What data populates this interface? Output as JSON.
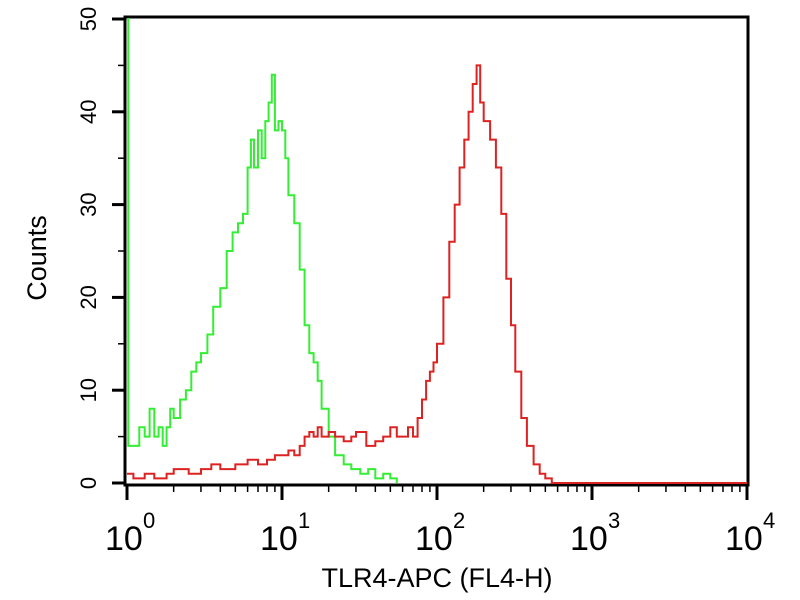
{
  "chart_data": {
    "type": "line",
    "title": "",
    "xlabel": "TLR4-APC (FL4-H)",
    "ylabel": "Counts",
    "x_scale": "log",
    "xlim": [
      1,
      10000
    ],
    "ylim": [
      0,
      50
    ],
    "grid": false,
    "x_ticks": [
      {
        "base": "10",
        "exp": "0",
        "value": 1
      },
      {
        "base": "10",
        "exp": "1",
        "value": 10
      },
      {
        "base": "10",
        "exp": "2",
        "value": 100
      },
      {
        "base": "10",
        "exp": "3",
        "value": 1000
      },
      {
        "base": "10",
        "exp": "4",
        "value": 10000
      }
    ],
    "y_ticks": [
      "0",
      "10",
      "20",
      "30",
      "40",
      "50"
    ],
    "series": [
      {
        "color": "#33ee33",
        "points": [
          [
            1.0,
            50
          ],
          [
            1.02,
            4
          ],
          [
            1.1,
            4
          ],
          [
            1.2,
            6
          ],
          [
            1.3,
            5
          ],
          [
            1.4,
            8
          ],
          [
            1.5,
            5
          ],
          [
            1.6,
            6
          ],
          [
            1.7,
            4
          ],
          [
            1.8,
            6
          ],
          [
            1.9,
            8
          ],
          [
            2.0,
            7
          ],
          [
            2.2,
            9
          ],
          [
            2.4,
            10
          ],
          [
            2.6,
            12
          ],
          [
            2.8,
            13
          ],
          [
            3.0,
            14
          ],
          [
            3.3,
            16
          ],
          [
            3.6,
            19
          ],
          [
            4.0,
            21
          ],
          [
            4.4,
            25
          ],
          [
            4.8,
            27
          ],
          [
            5.2,
            28
          ],
          [
            5.6,
            29
          ],
          [
            6.0,
            34
          ],
          [
            6.3,
            37
          ],
          [
            6.6,
            34
          ],
          [
            7.0,
            38
          ],
          [
            7.4,
            35
          ],
          [
            7.8,
            39
          ],
          [
            8.2,
            41
          ],
          [
            8.6,
            44
          ],
          [
            9.0,
            38
          ],
          [
            9.5,
            39
          ],
          [
            10.0,
            38
          ],
          [
            10.5,
            35
          ],
          [
            11.0,
            31
          ],
          [
            12.0,
            28
          ],
          [
            13.0,
            23
          ],
          [
            14.0,
            17
          ],
          [
            15.0,
            14
          ],
          [
            16.0,
            13
          ],
          [
            17.0,
            11
          ],
          [
            18.0,
            8
          ],
          [
            20.0,
            5
          ],
          [
            22.0,
            3
          ],
          [
            25.0,
            2
          ],
          [
            28.0,
            1.5
          ],
          [
            32.0,
            1
          ],
          [
            36.0,
            1.5
          ],
          [
            40.0,
            0.5
          ],
          [
            45.0,
            1
          ],
          [
            50.0,
            0.5
          ],
          [
            55.0,
            0
          ]
        ]
      },
      {
        "color": "#dd2222",
        "points": [
          [
            1.0,
            1
          ],
          [
            1.1,
            0.5
          ],
          [
            1.3,
            1
          ],
          [
            1.5,
            0.5
          ],
          [
            1.8,
            1
          ],
          [
            2.0,
            1.5
          ],
          [
            2.5,
            1
          ],
          [
            3.0,
            1.5
          ],
          [
            3.5,
            2
          ],
          [
            4.0,
            1.5
          ],
          [
            5.0,
            2
          ],
          [
            6.0,
            2.5
          ],
          [
            7.0,
            2
          ],
          [
            8.0,
            2.5
          ],
          [
            9.0,
            3
          ],
          [
            10.0,
            3
          ],
          [
            11.0,
            3.5
          ],
          [
            12.0,
            3
          ],
          [
            13.0,
            4
          ],
          [
            14.0,
            5
          ],
          [
            15.0,
            5.5
          ],
          [
            16.0,
            5
          ],
          [
            17.0,
            6
          ],
          [
            18.0,
            5
          ],
          [
            20.0,
            5.5
          ],
          [
            22.0,
            5
          ],
          [
            25.0,
            4.5
          ],
          [
            28.0,
            5
          ],
          [
            30.0,
            5.5
          ],
          [
            35.0,
            4
          ],
          [
            40.0,
            4.5
          ],
          [
            45.0,
            5
          ],
          [
            50.0,
            6
          ],
          [
            55.0,
            5
          ],
          [
            60.0,
            5
          ],
          [
            65.0,
            6
          ],
          [
            70.0,
            5
          ],
          [
            75.0,
            7
          ],
          [
            80.0,
            9
          ],
          [
            85.0,
            11
          ],
          [
            90.0,
            12
          ],
          [
            95.0,
            13
          ],
          [
            100.0,
            15
          ],
          [
            110.0,
            20
          ],
          [
            120.0,
            26
          ],
          [
            130.0,
            30
          ],
          [
            140.0,
            34
          ],
          [
            150.0,
            37
          ],
          [
            160.0,
            40
          ],
          [
            170.0,
            43
          ],
          [
            180.0,
            45
          ],
          [
            190.0,
            41
          ],
          [
            200.0,
            39
          ],
          [
            220.0,
            37
          ],
          [
            240.0,
            34
          ],
          [
            260.0,
            29
          ],
          [
            280.0,
            22
          ],
          [
            300.0,
            17
          ],
          [
            320.0,
            12
          ],
          [
            350.0,
            7
          ],
          [
            380.0,
            4
          ],
          [
            420.0,
            2
          ],
          [
            460.0,
            1
          ],
          [
            500.0,
            0.5
          ],
          [
            550.0,
            0
          ],
          [
            10000.0,
            0
          ]
        ]
      }
    ]
  }
}
